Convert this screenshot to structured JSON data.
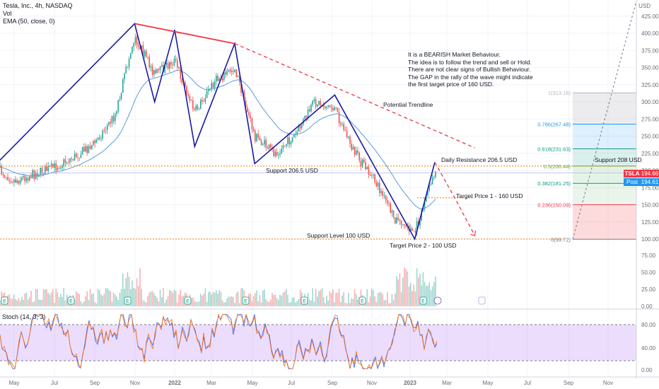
{
  "header": {
    "symbol_line": "Tesla, Inc., 4h, NASDAQ",
    "vol_label": "Vol",
    "ema_label": "EMA (50, close, 0)",
    "currency": "USD"
  },
  "note_lines": [
    "It is a BEARISH Market Behaviour.",
    "The idea is to follow the trend and sell or Hold.",
    "There are not clear signs of Bullish Behaviour.",
    "The GAP in the rally of the wave might indicate",
    "the first target price of 160 USD."
  ],
  "annotations": {
    "potential_trendline": "Potential Trendline",
    "support_206": "Support 206.5 USD",
    "daily_resistance": "Daily Resistance 206.5 USD",
    "target1": "Target Price 1 - 160 USD",
    "support_100": "Support Level 100 USD",
    "target2": "Target Price 2 - 100 USD",
    "support_208": "Support 208 USD"
  },
  "price_tags": {
    "ticker": "TSLA",
    "last": "194.66",
    "post_label": "Post",
    "post": "194.61"
  },
  "stoch_label": "Stoch (14, 3, 3)",
  "colors": {
    "up": "#26a69a",
    "down": "#ef5350",
    "wave": "#1a1aa6",
    "red_line": "#f23645",
    "ema": "#2962ff",
    "orange": "#f57c00",
    "stoch_bg": "#e1c8fb"
  },
  "chart_data": {
    "type": "line",
    "title": "Tesla, Inc., 4h, NASDAQ",
    "y_axis": {
      "ticks": [
        "425.00",
        "400.00",
        "375.00",
        "350.00",
        "325.00",
        "300.00",
        "275.00",
        "250.00",
        "225.00",
        "200.00",
        "175.00",
        "150.00",
        "125.00",
        "100.00"
      ],
      "range": [
        90,
        430
      ]
    },
    "volume_axis": {
      "ticks": [
        "100.00",
        "75.00",
        "50.00",
        "25.00",
        "0.00"
      ]
    },
    "stoch_axis": {
      "ticks": [
        "80.00",
        "40.00",
        "0.00"
      ]
    },
    "x_axis": {
      "ticks": [
        "May",
        "Jul",
        "Sep",
        "Nov",
        "2022",
        "Mar",
        "May",
        "Jul",
        "Sep",
        "Nov",
        "2023",
        "Mar",
        "May",
        "Jul",
        "Sep",
        "Nov"
      ]
    },
    "price_path": [
      [
        "Apr 2021",
        205
      ],
      [
        "May 2021",
        185
      ],
      [
        "Jun 2021",
        195
      ],
      [
        "Jul 2021",
        205
      ],
      [
        "Aug 2021",
        220
      ],
      [
        "Sep 2021",
        240
      ],
      [
        "Oct 2021",
        280
      ],
      [
        "Nov 2021",
        395
      ],
      [
        "Dec 2021",
        340
      ],
      [
        "Jan 2022",
        360
      ],
      [
        "Feb 2022",
        285
      ],
      [
        "Mar 2022",
        330
      ],
      [
        "Apr 2022",
        350
      ],
      [
        "May 2022",
        250
      ],
      [
        "Jun 2022",
        225
      ],
      [
        "Jul 2022",
        250
      ],
      [
        "Aug 2022",
        300
      ],
      [
        "Sep 2022",
        290
      ],
      [
        "Oct 2022",
        225
      ],
      [
        "Nov 2022",
        185
      ],
      [
        "Dec 2022",
        130
      ],
      [
        "Jan 2023",
        110
      ],
      [
        "Feb 2023",
        200
      ],
      [
        "Feb 2023 end",
        194.66
      ]
    ],
    "wave_points": [
      [
        "Apr 2021",
        207
      ],
      [
        "Nov 2021",
        414
      ],
      [
        "Dec 2021",
        300
      ],
      [
        "Jan 2022",
        405
      ],
      [
        "Feb 2022",
        235
      ],
      [
        "Apr 2022",
        385
      ],
      [
        "May 2022",
        210
      ],
      [
        "Sep 2022",
        310
      ],
      [
        "Jan 2023",
        100
      ],
      [
        "Feb 2023",
        212
      ]
    ],
    "projection": [
      [
        "Feb 2023",
        212
      ],
      [
        "Mar 2023",
        160
      ],
      [
        "Apr 2023",
        105
      ]
    ],
    "resistance_line": [
      [
        "Nov 2021",
        414
      ],
      [
        "Apr 2022",
        385
      ]
    ],
    "potential_trendline": [
      [
        "Apr 2022",
        385
      ],
      [
        "Apr 2023",
        233
      ]
    ],
    "levels": {
      "support_206_5": 206.5,
      "target_160": 160,
      "support_100": 100
    },
    "fib_levels": [
      {
        "label": "1(313.16)",
        "value": 313.16
      },
      {
        "label": "0.786(267.48)",
        "value": 267.48
      },
      {
        "label": "0.618(231.63)",
        "value": 231.63
      },
      {
        "label": "0.5(206.44)",
        "value": 206.44
      },
      {
        "label": "0.382(181.25)",
        "value": 181.25
      },
      {
        "label": "0.236(150.09)",
        "value": 150.09
      },
      {
        "label": "0(99.72)",
        "value": 99.72
      }
    ],
    "stoch_levels": [
      80,
      20
    ]
  }
}
